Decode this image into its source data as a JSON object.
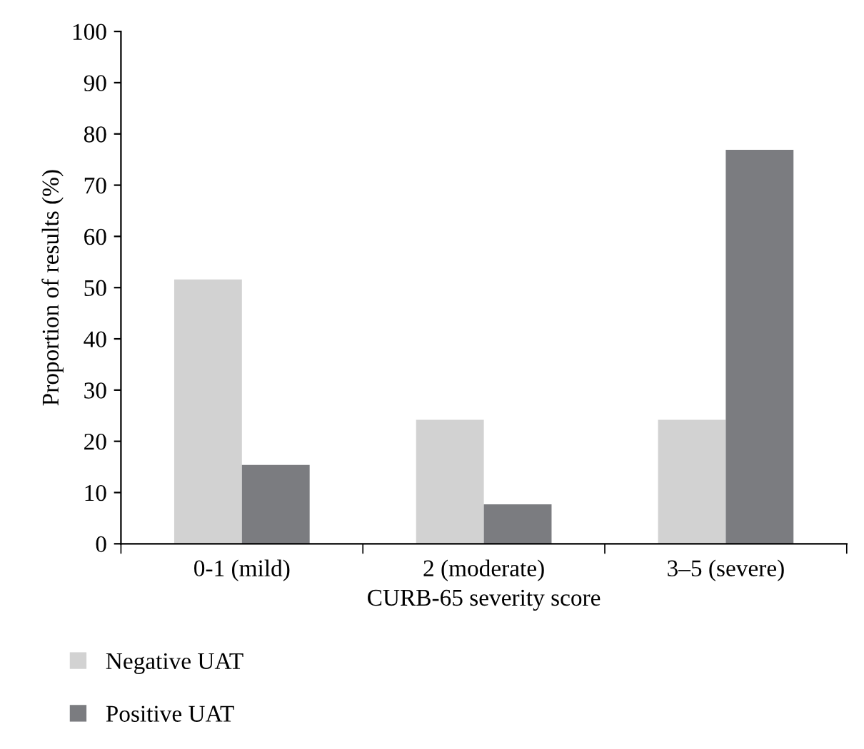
{
  "chart_data": {
    "type": "bar",
    "xlabel": "CURB-65 severity score",
    "ylabel": "Proportion of results (%)",
    "categories": [
      "0-1 (mild)",
      "2 (moderate)",
      "3–5 (severe)"
    ],
    "series": [
      {
        "name": "Negative UAT",
        "color": "#d2d2d2",
        "values": [
          51.6,
          24.2,
          24.2
        ]
      },
      {
        "name": "Positive UAT",
        "color": "#7b7c80",
        "values": [
          15.4,
          7.7,
          76.9
        ]
      }
    ],
    "ylim": [
      0,
      100
    ],
    "yticks": [
      0,
      10,
      20,
      30,
      40,
      50,
      60,
      70,
      80,
      90,
      100
    ],
    "grid": false,
    "legend": "bottom left"
  }
}
